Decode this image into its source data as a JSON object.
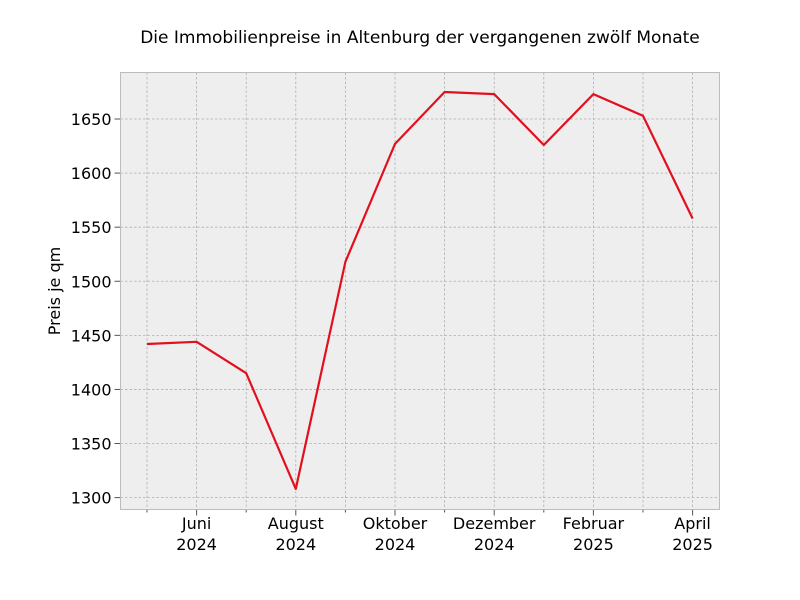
{
  "chart_data": {
    "type": "line",
    "title": "Die Immobilienpreise in Altenburg der vergangenen zwölf Monate",
    "xlabel": "",
    "ylabel": "Preis je qm",
    "x": [
      "2024-05",
      "2024-06",
      "2024-07",
      "2024-08",
      "2024-09",
      "2024-10",
      "2024-11",
      "2024-12",
      "2025-01",
      "2025-02",
      "2025-03",
      "2025-04"
    ],
    "series": [
      {
        "values": [
          1442,
          1444,
          1415,
          1308,
          1518,
          1627,
          1675,
          1673,
          1626,
          1673,
          1653,
          1558
        ]
      }
    ],
    "ylim": [
      1289,
      1693
    ],
    "yticks": [
      1300,
      1350,
      1400,
      1450,
      1500,
      1550,
      1600,
      1650
    ],
    "xticks_major": [
      {
        "x": "2024-06",
        "label": [
          "Juni",
          "2024"
        ]
      },
      {
        "x": "2024-08",
        "label": [
          "August",
          "2024"
        ]
      },
      {
        "x": "2024-10",
        "label": [
          "Oktober",
          "2024"
        ]
      },
      {
        "x": "2024-12",
        "label": [
          "Dezember",
          "2024"
        ]
      },
      {
        "x": "2025-02",
        "label": [
          "Februar",
          "2025"
        ]
      },
      {
        "x": "2025-04",
        "label": [
          "April",
          "2025"
        ]
      }
    ],
    "grid": true,
    "colors": {
      "line": "#e2101e",
      "plot_background": "#eeeeee",
      "grid": "#b0b0b0",
      "frame": "#bcbcbc"
    }
  }
}
